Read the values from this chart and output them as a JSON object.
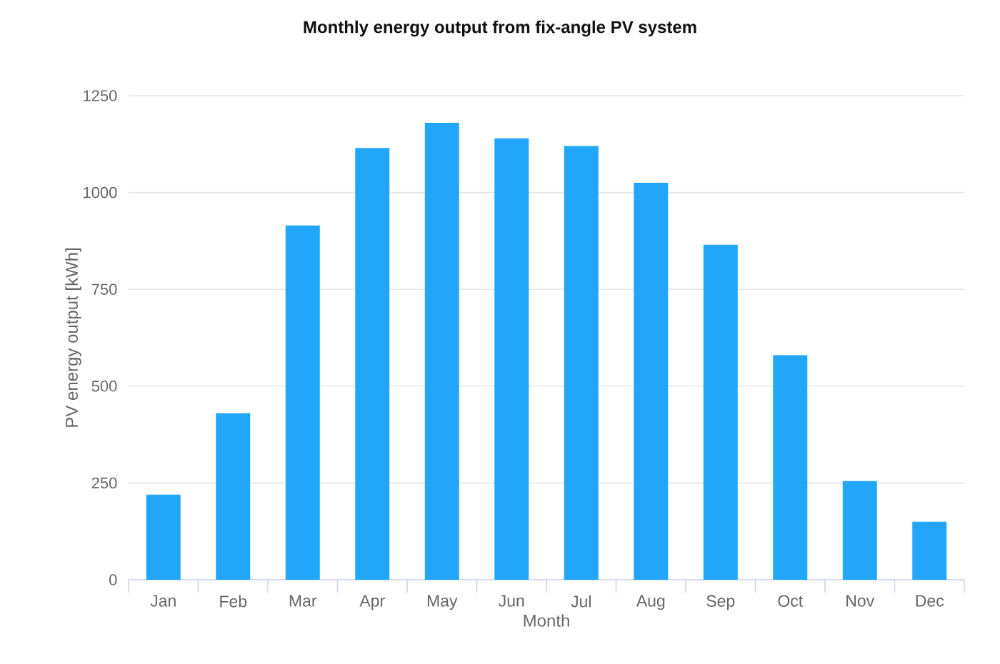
{
  "chart_data": {
    "type": "bar",
    "title": "Monthly energy output from fix-angle PV system",
    "xlabel": "Month",
    "ylabel": "PV energy output [kWh]",
    "categories": [
      "Jan",
      "Feb",
      "Mar",
      "Apr",
      "May",
      "Jun",
      "Jul",
      "Aug",
      "Sep",
      "Oct",
      "Nov",
      "Dec"
    ],
    "values": [
      220,
      430,
      915,
      1115,
      1180,
      1140,
      1120,
      1025,
      865,
      580,
      255,
      150
    ],
    "color": "#21a6fa",
    "ylim": [
      0,
      1250
    ],
    "yticks": [
      0,
      250,
      500,
      750,
      1000,
      1250
    ],
    "grid": "y"
  }
}
